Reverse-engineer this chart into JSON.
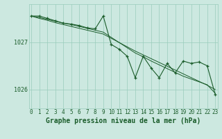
{
  "title": "Graphe pression niveau de la mer (hPa)",
  "background_color": "#cce8e0",
  "grid_color": "#99ccbb",
  "line_color": "#1a5c2a",
  "x_values": [
    0,
    1,
    2,
    3,
    4,
    5,
    6,
    7,
    8,
    9,
    10,
    11,
    12,
    13,
    14,
    15,
    16,
    17,
    18,
    19,
    20,
    21,
    22,
    23
  ],
  "y_main": [
    1027.55,
    1027.55,
    1027.5,
    1027.45,
    1027.4,
    1027.38,
    1027.35,
    1027.3,
    1027.28,
    1027.55,
    1026.95,
    1026.85,
    1026.7,
    1026.25,
    1026.7,
    1026.45,
    1026.25,
    1026.55,
    1026.35,
    1026.6,
    1026.55,
    1026.58,
    1026.5,
    1025.9
  ],
  "y_smooth1": [
    1027.55,
    1027.5,
    1027.46,
    1027.41,
    1027.37,
    1027.33,
    1027.29,
    1027.25,
    1027.21,
    1027.17,
    1027.08,
    1026.99,
    1026.9,
    1026.81,
    1026.73,
    1026.65,
    1026.57,
    1026.49,
    1026.41,
    1026.33,
    1026.25,
    1026.17,
    1026.09,
    1026.0
  ],
  "y_smooth2": [
    1027.55,
    1027.52,
    1027.48,
    1027.44,
    1027.4,
    1027.37,
    1027.33,
    1027.29,
    1027.25,
    1027.21,
    1027.1,
    1026.99,
    1026.88,
    1026.77,
    1026.69,
    1026.6,
    1026.52,
    1026.44,
    1026.36,
    1026.28,
    1026.22,
    1026.16,
    1026.1,
    1025.92
  ],
  "ylim": [
    1025.6,
    1027.8
  ],
  "yticks": [
    1026,
    1027
  ],
  "title_fontsize": 7.0,
  "tick_fontsize": 5.5,
  "ytick_fontsize": 6.0
}
